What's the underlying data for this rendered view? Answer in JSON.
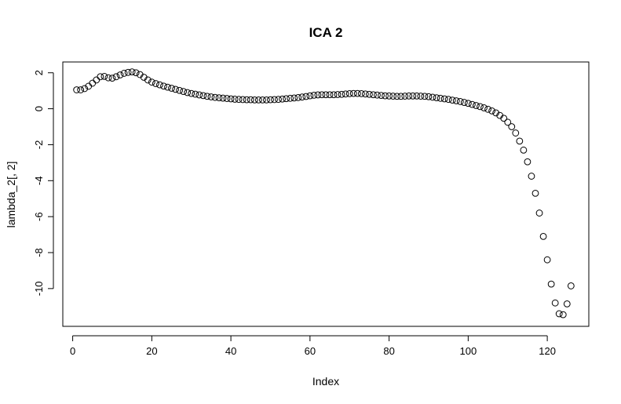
{
  "chart_data": {
    "type": "scatter",
    "title": "ICA 2",
    "xlabel": "Index",
    "ylabel": "lambda_2[, 2]",
    "xlim": [
      -2.5,
      130.5
    ],
    "ylim": [
      -12.1,
      2.6
    ],
    "x_ticks": [
      0,
      20,
      40,
      60,
      80,
      100,
      120
    ],
    "y_ticks": [
      2,
      0,
      -2,
      -4,
      -6,
      -8,
      -10
    ],
    "x_tick_labels": [
      "0",
      "20",
      "40",
      "60",
      "80",
      "100",
      "120"
    ],
    "y_tick_labels": [
      "2",
      "0",
      "-2",
      "-4",
      "-6",
      "-8",
      "-10"
    ],
    "grid": false,
    "legend": "none",
    "marker": "open-circle",
    "x": [
      1,
      2,
      3,
      4,
      5,
      6,
      7,
      8,
      9,
      10,
      11,
      12,
      13,
      14,
      15,
      16,
      17,
      18,
      19,
      20,
      21,
      22,
      23,
      24,
      25,
      26,
      27,
      28,
      29,
      30,
      31,
      32,
      33,
      34,
      35,
      36,
      37,
      38,
      39,
      40,
      41,
      42,
      43,
      44,
      45,
      46,
      47,
      48,
      49,
      50,
      51,
      52,
      53,
      54,
      55,
      56,
      57,
      58,
      59,
      60,
      61,
      62,
      63,
      64,
      65,
      66,
      67,
      68,
      69,
      70,
      71,
      72,
      73,
      74,
      75,
      76,
      77,
      78,
      79,
      80,
      81,
      82,
      83,
      84,
      85,
      86,
      87,
      88,
      89,
      90,
      91,
      92,
      93,
      94,
      95,
      96,
      97,
      98,
      99,
      100,
      101,
      102,
      103,
      104,
      105,
      106,
      107,
      108,
      109,
      110,
      111,
      112,
      113,
      114,
      115,
      116,
      117,
      118,
      119,
      120,
      121,
      122,
      123,
      124,
      125,
      126
    ],
    "y": [
      1.05,
      1.05,
      1.12,
      1.25,
      1.42,
      1.6,
      1.78,
      1.8,
      1.72,
      1.7,
      1.78,
      1.88,
      1.97,
      2.02,
      2.05,
      2.0,
      1.9,
      1.75,
      1.6,
      1.48,
      1.4,
      1.33,
      1.26,
      1.2,
      1.14,
      1.08,
      1.02,
      0.96,
      0.9,
      0.85,
      0.81,
      0.77,
      0.73,
      0.69,
      0.66,
      0.63,
      0.61,
      0.59,
      0.57,
      0.55,
      0.53,
      0.52,
      0.51,
      0.5,
      0.5,
      0.49,
      0.49,
      0.49,
      0.49,
      0.5,
      0.51,
      0.52,
      0.54,
      0.56,
      0.58,
      0.6,
      0.62,
      0.65,
      0.68,
      0.72,
      0.75,
      0.77,
      0.78,
      0.78,
      0.78,
      0.78,
      0.79,
      0.8,
      0.82,
      0.84,
      0.85,
      0.85,
      0.84,
      0.82,
      0.8,
      0.78,
      0.76,
      0.74,
      0.72,
      0.71,
      0.7,
      0.69,
      0.69,
      0.7,
      0.71,
      0.71,
      0.71,
      0.7,
      0.69,
      0.67,
      0.64,
      0.61,
      0.58,
      0.55,
      0.52,
      0.48,
      0.44,
      0.4,
      0.35,
      0.3,
      0.24,
      0.18,
      0.12,
      0.05,
      -0.03,
      -0.12,
      -0.23,
      -0.37,
      -0.53,
      -0.75,
      -1.0,
      -1.35,
      -1.8,
      -2.3,
      -2.95,
      -3.75,
      -4.7,
      -5.8,
      -7.1,
      -8.4,
      -9.75,
      -10.8,
      -11.4,
      -11.45,
      -10.85,
      -9.85
    ]
  }
}
